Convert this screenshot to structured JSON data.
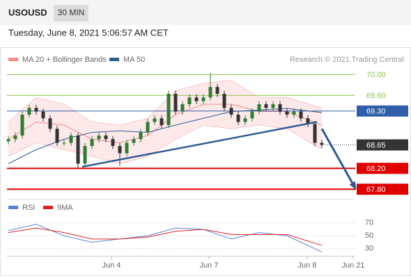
{
  "header": {
    "symbol": "USOUSD",
    "timeframe": "30 MIN",
    "date": "Tuesday, June 8, 2021 5:06:57 AM CET"
  },
  "chart_data": {
    "type": "candlestick",
    "legend": [
      "MA 20 + Bollinger Bands",
      "MA 50"
    ],
    "legend_colors": [
      "#f48c8c",
      "#2e5a95"
    ],
    "credit": "Research © 2021 Trading Central",
    "xlim": [
      -0.2,
      49.8
    ],
    "xticks": [
      {
        "value": 14.8,
        "label": "Jun 4"
      },
      {
        "value": 28.8,
        "label": "Jun 7"
      },
      {
        "value": 42.9,
        "label": "Jun 8"
      },
      {
        "value": 49.5,
        "label": "Jun 21"
      }
    ],
    "ylim": [
      67.63,
      70.43
    ],
    "up_color": "#2e7d32",
    "down_color": "#333333",
    "open": [
      68.72,
      68.76,
      68.83,
      69.23,
      69.36,
      69.29,
      69.16,
      68.96,
      68.69,
      68.69,
      68.83,
      68.29,
      68.63,
      68.76,
      68.83,
      68.76,
      68.63,
      68.49,
      68.69,
      68.76,
      68.89,
      69.09,
      69.16,
      69.03,
      69.63,
      69.29,
      69.43,
      69.56,
      69.49,
      69.56,
      69.76,
      69.63,
      69.36,
      69.23,
      69.09,
      69.16,
      69.29,
      69.43,
      69.36,
      69.43,
      69.29,
      69.23,
      69.29,
      69.16,
      69.05,
      68.69
    ],
    "high": [
      68.82,
      68.89,
      69.29,
      69.42,
      69.42,
      69.35,
      69.22,
      69.02,
      68.75,
      68.89,
      68.89,
      68.69,
      68.82,
      68.89,
      68.89,
      68.82,
      68.69,
      68.75,
      68.82,
      68.95,
      69.15,
      69.22,
      69.22,
      69.69,
      69.69,
      69.49,
      69.62,
      69.62,
      69.62,
      70.03,
      69.82,
      69.69,
      69.42,
      69.29,
      69.22,
      69.35,
      69.49,
      69.49,
      69.49,
      69.49,
      69.35,
      69.35,
      69.35,
      69.22,
      69.11,
      68.75
    ],
    "low": [
      68.66,
      68.7,
      68.77,
      69.17,
      69.23,
      69.1,
      68.9,
      68.63,
      68.63,
      68.63,
      68.2,
      68.23,
      68.57,
      68.7,
      68.7,
      68.57,
      68.25,
      68.43,
      68.63,
      68.7,
      68.83,
      69.03,
      68.97,
      68.97,
      69.23,
      69.23,
      69.37,
      69.43,
      69.43,
      69.5,
      69.57,
      69.3,
      69.17,
      69.03,
      69.03,
      69.1,
      69.23,
      69.3,
      69.3,
      69.23,
      69.17,
      69.17,
      69.1,
      68.99,
      68.62,
      68.59
    ],
    "close": [
      68.76,
      68.83,
      69.23,
      69.36,
      69.29,
      69.16,
      68.96,
      68.69,
      68.69,
      68.83,
      68.29,
      68.63,
      68.76,
      68.83,
      68.76,
      68.63,
      68.49,
      68.69,
      68.76,
      68.89,
      69.09,
      69.16,
      69.03,
      69.63,
      69.29,
      69.43,
      69.56,
      69.49,
      69.56,
      69.76,
      69.63,
      69.36,
      69.23,
      69.09,
      69.16,
      69.29,
      69.43,
      69.36,
      69.43,
      69.29,
      69.23,
      69.29,
      69.16,
      69.05,
      68.69,
      68.65
    ],
    "indicator_x": [
      0,
      4,
      8,
      12,
      16,
      20,
      24,
      28,
      32,
      36,
      40,
      45
    ],
    "bands": {
      "color": "#f48c8c",
      "fill": "#fde3e3",
      "upper": [
        69.09,
        69.56,
        69.43,
        69.09,
        69.03,
        69.16,
        69.69,
        69.83,
        69.89,
        69.56,
        69.56,
        69.36
      ],
      "middle": [
        68.76,
        69.09,
        69.03,
        68.76,
        68.69,
        68.83,
        69.23,
        69.43,
        69.43,
        69.29,
        69.29,
        69.03
      ],
      "lower": [
        68.43,
        68.69,
        68.56,
        68.43,
        68.29,
        68.43,
        68.76,
        69.03,
        68.96,
        69.03,
        68.96,
        68.56
      ]
    },
    "ma50": {
      "color": "#2e5a95",
      "values": [
        68.29,
        68.56,
        68.76,
        68.89,
        68.92,
        68.89,
        69.03,
        69.16,
        69.29,
        69.32,
        69.35,
        69.27
      ]
    },
    "levels": [
      {
        "value": 70.0,
        "label": "70.00",
        "color": "#8bc34a",
        "boxed": false,
        "dotted": false
      },
      {
        "value": 69.6,
        "label": "69.60",
        "color": "#8bc34a",
        "boxed": false,
        "dotted": false
      },
      {
        "value": 69.3,
        "label": "69.30",
        "color": "#2e5fa8",
        "boxed": true,
        "dotted": false
      },
      {
        "value": 68.65,
        "label": "68.65",
        "color": "#333333",
        "boxed": true,
        "dotted": true
      },
      {
        "value": 68.2,
        "label": "68.20",
        "color": "#e00000",
        "boxed": true,
        "dotted": false
      },
      {
        "value": 67.8,
        "label": "67.80",
        "color": "#e00000",
        "boxed": true,
        "dotted": false
      }
    ],
    "trendline": {
      "color": "#2e5a95",
      "x": [
        10.6,
        44.3
      ],
      "y": [
        68.23,
        69.09
      ]
    },
    "arrow": {
      "color": "#2e5a95",
      "x": [
        45,
        49.8
      ],
      "y": [
        68.96,
        67.82
      ]
    },
    "rsi": {
      "ylim": [
        19,
        87
      ],
      "yticks": [
        30,
        50,
        70
      ],
      "series": [
        {
          "name": "RSI",
          "color": "#5b7fd6",
          "values": [
            58,
            68,
            50,
            40,
            45,
            50,
            62,
            60,
            45,
            55,
            50,
            25
          ]
        },
        {
          "name": "9MA",
          "color": "#e02020",
          "values": [
            55,
            62,
            55,
            45,
            45,
            48,
            57,
            60,
            52,
            52,
            52,
            35
          ]
        }
      ]
    }
  }
}
